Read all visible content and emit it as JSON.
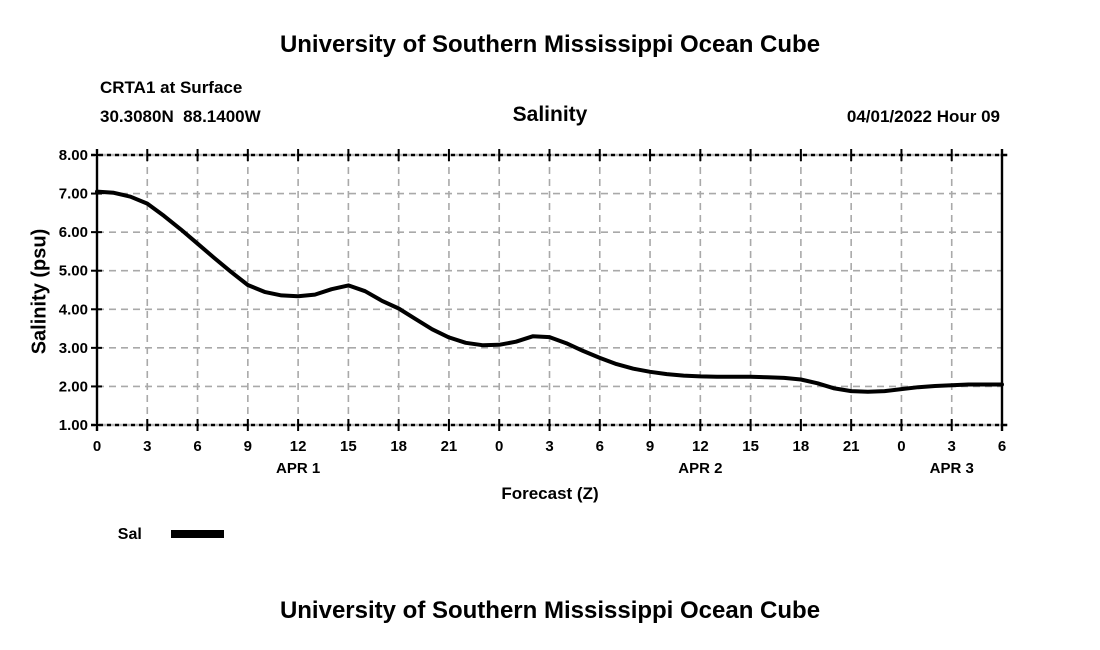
{
  "header": {
    "title": "University of Southern Mississippi Ocean Cube",
    "station": "CRTA1 at Surface",
    "coords": "30.3080N  88.1400W",
    "variable": "Salinity",
    "datetime": "04/01/2022 Hour 09"
  },
  "footer": {
    "title": "University of Southern Mississippi Ocean Cube"
  },
  "legend": {
    "label": "Sal",
    "color": "#000000"
  },
  "chart_data": {
    "type": "line",
    "title": "Salinity",
    "xlabel": "Forecast (Z)",
    "ylabel": "Salinity (psu)",
    "xlim": [
      0,
      54
    ],
    "ylim": [
      1.0,
      8.0
    ],
    "grid": true,
    "grid_color": "#a9a9a9",
    "line_color": "#000000",
    "legend_position": "bottom-left",
    "x": [
      0,
      1,
      2,
      3,
      4,
      5,
      6,
      7,
      8,
      9,
      10,
      11,
      12,
      13,
      14,
      15,
      16,
      17,
      18,
      19,
      20,
      21,
      22,
      23,
      24,
      25,
      26,
      27,
      28,
      29,
      30,
      31,
      32,
      33,
      34,
      35,
      36,
      37,
      38,
      39,
      40,
      41,
      42,
      43,
      44,
      45,
      46,
      47,
      48,
      49,
      50,
      51,
      52,
      53,
      54
    ],
    "series": [
      {
        "name": "Sal",
        "values": [
          7.05,
          7.02,
          6.92,
          6.74,
          6.42,
          6.07,
          5.7,
          5.33,
          4.97,
          4.63,
          4.45,
          4.36,
          4.34,
          4.38,
          4.52,
          4.62,
          4.47,
          4.22,
          4.02,
          3.75,
          3.48,
          3.27,
          3.13,
          3.07,
          3.08,
          3.16,
          3.3,
          3.28,
          3.12,
          2.92,
          2.74,
          2.58,
          2.46,
          2.38,
          2.32,
          2.28,
          2.26,
          2.25,
          2.25,
          2.25,
          2.24,
          2.22,
          2.18,
          2.08,
          1.95,
          1.88,
          1.86,
          1.88,
          1.93,
          1.98,
          2.01,
          2.03,
          2.05,
          2.05,
          2.05
        ]
      }
    ],
    "yticks": [
      {
        "value": 8,
        "label": "8.00"
      },
      {
        "value": 7,
        "label": "7.00"
      },
      {
        "value": 6,
        "label": "6.00"
      },
      {
        "value": 5,
        "label": "5.00"
      },
      {
        "value": 4,
        "label": "4.00"
      },
      {
        "value": 3,
        "label": "3.00"
      },
      {
        "value": 2,
        "label": "2.00"
      },
      {
        "value": 1,
        "label": "1.00"
      }
    ],
    "xticks": [
      {
        "hour": 0,
        "label": "0"
      },
      {
        "hour": 3,
        "label": "3"
      },
      {
        "hour": 6,
        "label": "6"
      },
      {
        "hour": 9,
        "label": "9"
      },
      {
        "hour": 12,
        "label": "12"
      },
      {
        "hour": 15,
        "label": "15"
      },
      {
        "hour": 18,
        "label": "18"
      },
      {
        "hour": 21,
        "label": "21"
      },
      {
        "hour": 24,
        "label": "0"
      },
      {
        "hour": 27,
        "label": "3"
      },
      {
        "hour": 30,
        "label": "6"
      },
      {
        "hour": 33,
        "label": "9"
      },
      {
        "hour": 36,
        "label": "12"
      },
      {
        "hour": 39,
        "label": "15"
      },
      {
        "hour": 42,
        "label": "18"
      },
      {
        "hour": 45,
        "label": "21"
      },
      {
        "hour": 48,
        "label": "0"
      },
      {
        "hour": 51,
        "label": "3"
      },
      {
        "hour": 54,
        "label": "6"
      }
    ],
    "day_labels": [
      {
        "hour": 12,
        "label": "APR 1"
      },
      {
        "hour": 36,
        "label": "APR 2"
      },
      {
        "hour": 51,
        "label": "APR 3"
      }
    ]
  }
}
